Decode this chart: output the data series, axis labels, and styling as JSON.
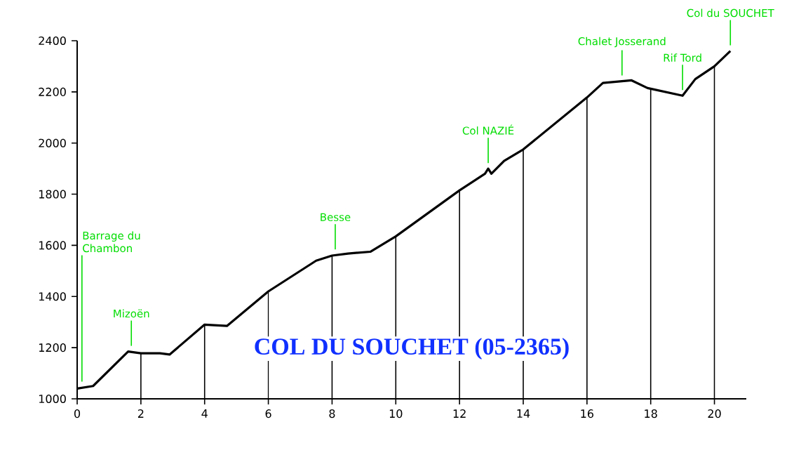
{
  "chart_data": {
    "type": "line",
    "title": "COL DU SOUCHET  (05-2365)",
    "x": [
      0,
      0.5,
      1.6,
      2.0,
      2.6,
      2.9,
      4.0,
      4.7,
      6.0,
      7.5,
      8.0,
      8.5,
      9.2,
      10.0,
      12.0,
      12.8,
      12.9,
      13.0,
      13.4,
      14.0,
      16.0,
      16.5,
      17.4,
      17.9,
      19.0,
      19.4,
      20.0,
      20.5
    ],
    "series": [
      {
        "color": "#000000",
        "values": [
          1040,
          1050,
          1185,
          1178,
          1178,
          1173,
          1290,
          1285,
          1420,
          1540,
          1560,
          1568,
          1575,
          1635,
          1815,
          1880,
          1900,
          1880,
          1930,
          1975,
          2178,
          2235,
          2245,
          2215,
          2185,
          2250,
          2300,
          2360
        ]
      }
    ],
    "xlim": [
      0,
      21
    ],
    "ylim": [
      1000,
      2400
    ],
    "xticks": [
      0,
      2,
      4,
      6,
      8,
      10,
      12,
      14,
      16,
      18,
      20
    ],
    "yticks": [
      1000,
      1200,
      1400,
      1600,
      1800,
      2000,
      2200,
      2400
    ],
    "grid": "x",
    "marker": "none",
    "line_style": "solid",
    "annotations": [
      {
        "text": "Barrage du Chambon",
        "x": 0.15,
        "y": 1045
      },
      {
        "text": "Mizoën",
        "x": 1.7,
        "y": 1185
      },
      {
        "text": "Besse",
        "x": 8.1,
        "y": 1562
      },
      {
        "text": "Col NAZIÉ",
        "x": 12.9,
        "y": 1900
      },
      {
        "text": "Chalet Josserand",
        "x": 17.1,
        "y": 2242
      },
      {
        "text": "Rif Tord",
        "x": 19.0,
        "y": 2185
      },
      {
        "text": "Col du SOUCHET",
        "x": 20.5,
        "y": 2360
      }
    ]
  }
}
